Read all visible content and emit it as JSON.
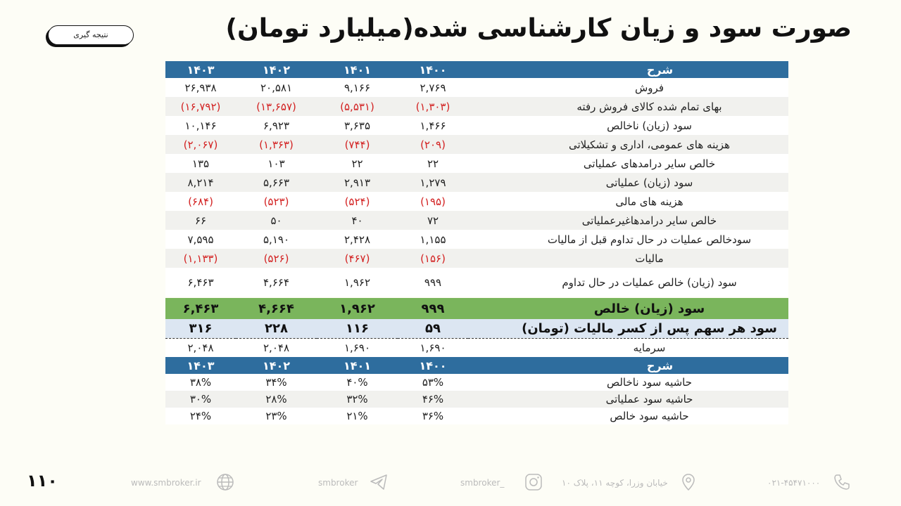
{
  "header": {
    "title": "صورت سود و زیان کارشناسی شده(میلیارد تومان)",
    "pill_label": "نتیجه گیری"
  },
  "table1": {
    "header": {
      "desc": "شرح",
      "years": [
        "۱۴۰۳",
        "۱۴۰۲",
        "۱۴۰۱",
        "۱۴۰۰"
      ]
    },
    "rows": [
      {
        "desc": "فروش",
        "v": [
          "۲۶,۹۳۸",
          "۲۰,۵۸۱",
          "۹,۱۶۶",
          "۲,۷۶۹"
        ]
      },
      {
        "desc": "بهای تمام شده کالای فروش رفته",
        "v": [
          "(۱۶,۷۹۲)",
          "(۱۳,۶۵۷)",
          "(۵,۵۳۱)",
          "(۱,۳۰۳)"
        ]
      },
      {
        "desc": "سود (زیان) ناخالص",
        "v": [
          "۱۰,۱۴۶",
          "۶,۹۲۳",
          "۳,۶۳۵",
          "۱,۴۶۶"
        ]
      },
      {
        "desc": "هزینه های عمومی، اداری و تشکیلاتی",
        "v": [
          "(۲,۰۶۷)",
          "(۱,۳۶۳)",
          "(۷۴۴)",
          "(۲۰۹)"
        ]
      },
      {
        "desc": "خالص سایر درامدهای  عملیاتی",
        "v": [
          "۱۳۵",
          "۱۰۳",
          "۲۲",
          "۲۲"
        ]
      },
      {
        "desc": "سود (زیان) عملیاتی",
        "v": [
          "۸,۲۱۴",
          "۵,۶۶۳",
          "۲,۹۱۳",
          "۱,۲۷۹"
        ]
      },
      {
        "desc": "هزینه های مالی",
        "v": [
          "(۶۸۴)",
          "(۵۲۳)",
          "(۵۲۴)",
          "(۱۹۵)"
        ]
      },
      {
        "desc": "خالص سایر درامدهاغیرعملیاتی",
        "v": [
          "۶۶",
          "۵۰",
          "۴۰",
          "۷۲"
        ]
      },
      {
        "desc": "سودخالص عملیات در حال تداوم قبل از مالیات",
        "v": [
          "۷,۵۹۵",
          "۵,۱۹۰",
          "۲,۴۲۸",
          "۱,۱۵۵"
        ]
      },
      {
        "desc": "مالیات",
        "v": [
          "(۱,۱۳۳)",
          "(۵۲۶)",
          "(۴۶۷)",
          "(۱۵۶)"
        ]
      },
      {
        "desc": "سود (زیان) خالص عملیات در حال تداوم",
        "v": [
          "۶,۴۶۳",
          "۴,۶۶۴",
          "۱,۹۶۲",
          "۹۹۹"
        ]
      }
    ],
    "net": {
      "desc": "سود (زیان) خالص",
      "v": [
        "۶,۴۶۳",
        "۴,۶۶۴",
        "۱,۹۶۲",
        "۹۹۹"
      ]
    },
    "eps": {
      "desc": "سود هر سهم پس از کسر مالیات (تومان)",
      "v": [
        "۳۱۶",
        "۲۲۸",
        "۱۱۶",
        "۵۹"
      ]
    },
    "capital": {
      "desc": "سرمایه",
      "v": [
        "۲,۰۴۸",
        "۲,۰۴۸",
        "۱,۶۹۰",
        "۱,۶۹۰"
      ]
    }
  },
  "table2": {
    "header": {
      "desc": "شرح",
      "years": [
        "۱۴۰۳",
        "۱۴۰۲",
        "۱۴۰۱",
        "۱۴۰۰"
      ]
    },
    "rows": [
      {
        "desc": "حاشیه سود ناخالص",
        "v": [
          "۳۸%",
          "۳۴%",
          "۴۰%",
          "۵۳%"
        ]
      },
      {
        "desc": "حاشیه سود عملیاتی",
        "v": [
          "۳۰%",
          "۲۸%",
          "۳۲%",
          "۴۶%"
        ]
      },
      {
        "desc": "حاشیه سود خالص",
        "v": [
          "۲۴%",
          "۲۳%",
          "۲۱%",
          "۳۶%"
        ]
      }
    ]
  },
  "footer": {
    "page_number": "۱۱۰",
    "website": "www.smbroker.ir",
    "telegram": "smbroker",
    "instagram": "smbroker_",
    "address": "خیابان وزرا، کوچه ۱۱، پلاک ۱۰",
    "phone": "۰۲۱-۴۵۴۷۱۰۰۰"
  },
  "colors": {
    "header_blue": "#2e6d9e",
    "net_green": "#7ab55c",
    "eps_blue": "#dce6f2",
    "negative_red": "#d32222"
  }
}
